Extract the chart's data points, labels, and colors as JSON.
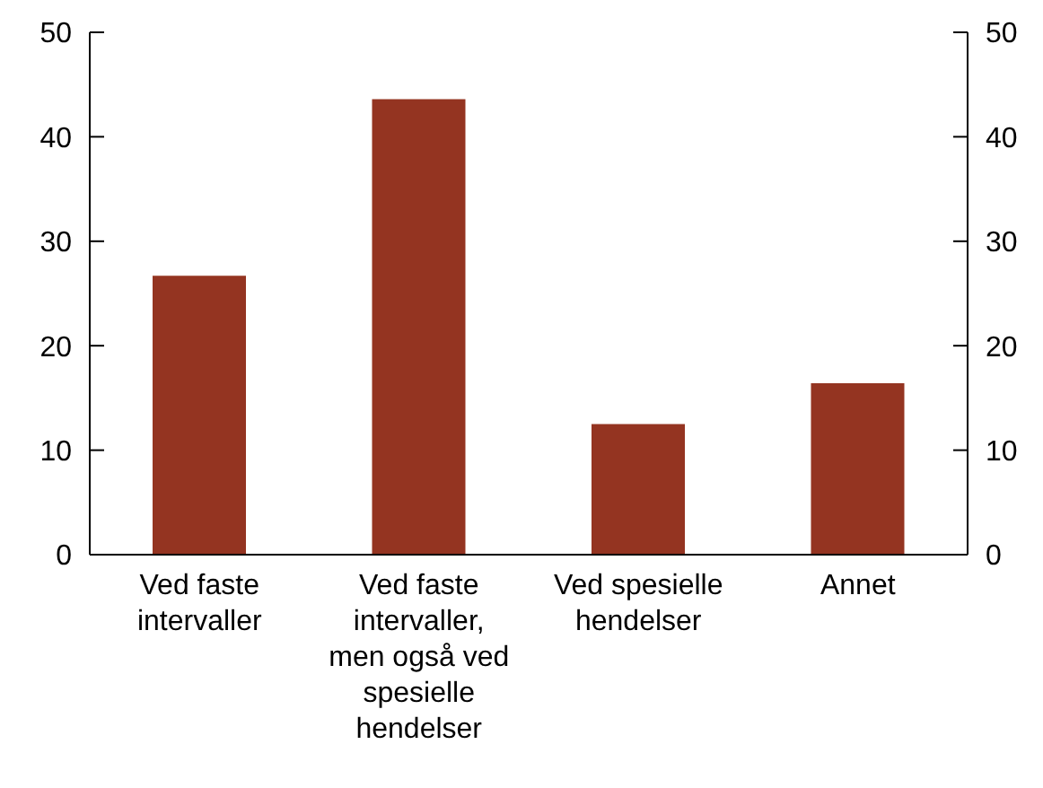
{
  "chart_data": {
    "type": "bar",
    "categories": [
      "Ved faste intervaller",
      "Ved faste intervaller, men også ved spesielle hendelser",
      "Ved spesielle hendelser",
      "Annet"
    ],
    "values": [
      26.7,
      43.6,
      12.5,
      16.4
    ],
    "color": "#943421",
    "ylim": [
      0,
      50
    ],
    "yticks": [
      0,
      10,
      20,
      30,
      40,
      50
    ],
    "y2lim": [
      0,
      50
    ],
    "y2ticks": [
      0,
      10,
      20,
      30,
      40,
      50
    ],
    "grid": false,
    "legend": false
  }
}
